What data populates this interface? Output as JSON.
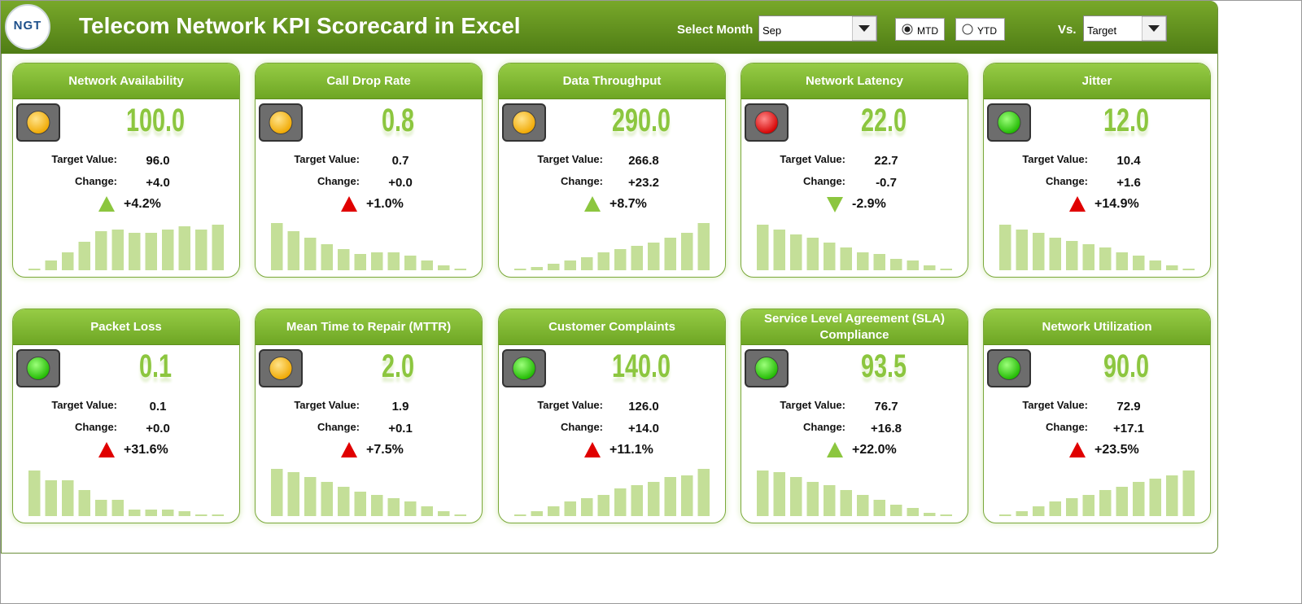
{
  "header": {
    "logo": "NGT",
    "title": "Telecom Network KPI Scorecard in Excel",
    "select_month_label": "Select Month",
    "month": "Sep",
    "mode_options": [
      "MTD",
      "YTD"
    ],
    "selected_mode": "MTD",
    "vs_label": "Vs.",
    "vs": "Target"
  },
  "cards": [
    {
      "title": "Network Availability",
      "value": "100.0",
      "status": "yellow",
      "target_label": "Target Value:",
      "target": "96.0",
      "change_label": "Change:",
      "change": "+4.0",
      "arrow": "up",
      "arrow_color": "green",
      "percent": "+4.2%",
      "trend": [
        2,
        12,
        22,
        35,
        48,
        50,
        46,
        46,
        50,
        54,
        50,
        56
      ]
    },
    {
      "title": "Call Drop Rate",
      "value": "0.8",
      "status": "yellow",
      "target_label": "Target Value:",
      "target": "0.7",
      "change_label": "Change:",
      "change": "+0.0",
      "arrow": "up",
      "arrow_color": "red",
      "percent": "+1.0%",
      "trend": [
        58,
        48,
        40,
        32,
        26,
        20,
        22,
        22,
        18,
        12,
        6,
        2
      ]
    },
    {
      "title": "Data Throughput",
      "value": "290.0",
      "status": "yellow",
      "target_label": "Target Value:",
      "target": "266.8",
      "change_label": "Change:",
      "change": "+23.2",
      "arrow": "up",
      "arrow_color": "green",
      "percent": "+8.7%",
      "trend": [
        2,
        4,
        8,
        12,
        16,
        22,
        26,
        30,
        34,
        40,
        46,
        58
      ]
    },
    {
      "title": "Network Latency",
      "value": "22.0",
      "status": "red",
      "target_label": "Target Value:",
      "target": "22.7",
      "change_label": "Change:",
      "change": "-0.7",
      "arrow": "down",
      "arrow_color": "green",
      "percent": "-2.9%",
      "trend": [
        56,
        50,
        44,
        40,
        34,
        28,
        22,
        20,
        14,
        12,
        6,
        2
      ]
    },
    {
      "title": "Jitter",
      "value": "12.0",
      "status": "green",
      "target_label": "Target Value:",
      "target": "10.4",
      "change_label": "Change:",
      "change": "+1.6",
      "arrow": "up",
      "arrow_color": "red",
      "percent": "+14.9%",
      "trend": [
        56,
        50,
        46,
        40,
        36,
        32,
        28,
        22,
        18,
        12,
        6,
        2
      ]
    },
    {
      "title": "Packet Loss",
      "value": "0.1",
      "status": "green",
      "target_label": "Target Value:",
      "target": "0.1",
      "change_label": "Change:",
      "change": "+0.0",
      "arrow": "up",
      "arrow_color": "red",
      "percent": "+31.6%",
      "trend": [
        56,
        44,
        44,
        32,
        20,
        20,
        8,
        8,
        8,
        6,
        2,
        2
      ]
    },
    {
      "title": "Mean Time to Repair (MTTR)",
      "value": "2.0",
      "status": "yellow",
      "target_label": "Target Value:",
      "target": "1.9",
      "change_label": "Change:",
      "change": "+0.1",
      "arrow": "up",
      "arrow_color": "red",
      "percent": "+7.5%",
      "trend": [
        58,
        54,
        48,
        42,
        36,
        30,
        26,
        22,
        18,
        12,
        6,
        2
      ]
    },
    {
      "title": "Customer Complaints",
      "value": "140.0",
      "status": "green",
      "target_label": "Target Value:",
      "target": "126.0",
      "change_label": "Change:",
      "change": "+14.0",
      "arrow": "up",
      "arrow_color": "red",
      "percent": "+11.1%",
      "trend": [
        2,
        6,
        12,
        18,
        22,
        26,
        34,
        38,
        42,
        48,
        50,
        58
      ]
    },
    {
      "title": "Service Level Agreement (SLA) Compliance",
      "value": "93.5",
      "status": "green",
      "target_label": "Target Value:",
      "target": "76.7",
      "change_label": "Change:",
      "change": "+16.8",
      "arrow": "up",
      "arrow_color": "green",
      "percent": "+22.0%",
      "trend": [
        56,
        54,
        48,
        42,
        38,
        32,
        26,
        20,
        14,
        10,
        4,
        2
      ]
    },
    {
      "title": "Network Utilization",
      "value": "90.0",
      "status": "green",
      "target_label": "Target Value:",
      "target": "72.9",
      "change_label": "Change:",
      "change": "+17.1",
      "arrow": "up",
      "arrow_color": "red",
      "percent": "+23.5%",
      "trend": [
        2,
        6,
        12,
        18,
        22,
        26,
        32,
        36,
        42,
        46,
        50,
        56
      ]
    }
  ]
}
